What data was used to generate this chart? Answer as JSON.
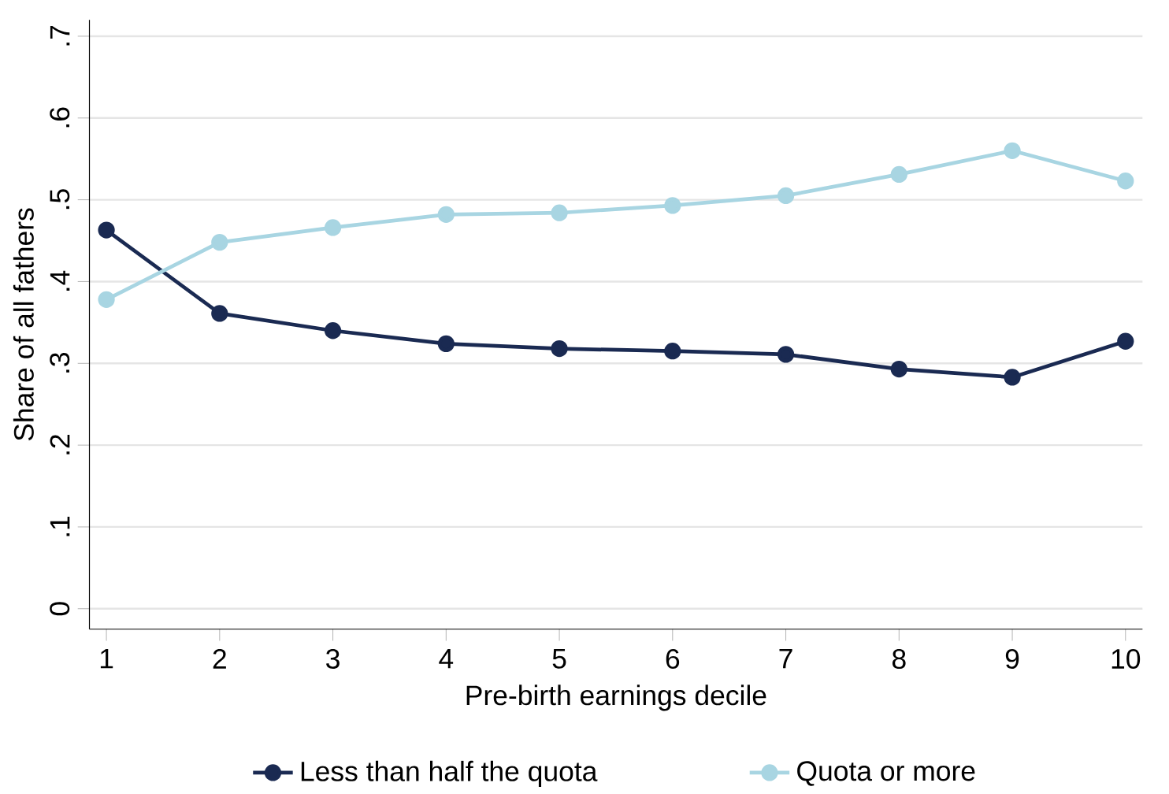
{
  "chart_data": {
    "type": "line",
    "xlabel": "Pre-birth earnings decile",
    "ylabel": "Share of all fathers",
    "x": [
      1,
      2,
      3,
      4,
      5,
      6,
      7,
      8,
      9,
      10
    ],
    "series": [
      {
        "name": "Less than half the quota",
        "color": "#1a2a52",
        "values": [
          0.463,
          0.361,
          0.34,
          0.324,
          0.318,
          0.315,
          0.311,
          0.293,
          0.283,
          0.327
        ]
      },
      {
        "name": "Quota or more",
        "color": "#a8d5e2",
        "values": [
          0.378,
          0.448,
          0.466,
          0.482,
          0.484,
          0.493,
          0.505,
          0.531,
          0.56,
          0.523
        ]
      }
    ],
    "xlim": [
      0.85,
      10.15
    ],
    "ylim": [
      -0.025,
      0.72
    ],
    "xticks": [
      1,
      2,
      3,
      4,
      5,
      6,
      7,
      8,
      9,
      10
    ],
    "yticks": [
      {
        "value": 0,
        "label": "0"
      },
      {
        "value": 0.1,
        "label": ".1"
      },
      {
        "value": 0.2,
        "label": ".2"
      },
      {
        "value": 0.3,
        "label": ".3"
      },
      {
        "value": 0.4,
        "label": ".4"
      },
      {
        "value": 0.5,
        "label": ".5"
      },
      {
        "value": 0.6,
        "label": ".6"
      },
      {
        "value": 0.7,
        "label": ".7"
      }
    ],
    "grid": "y",
    "legend": "bottom",
    "marker": "circle",
    "line_style": "solid"
  }
}
